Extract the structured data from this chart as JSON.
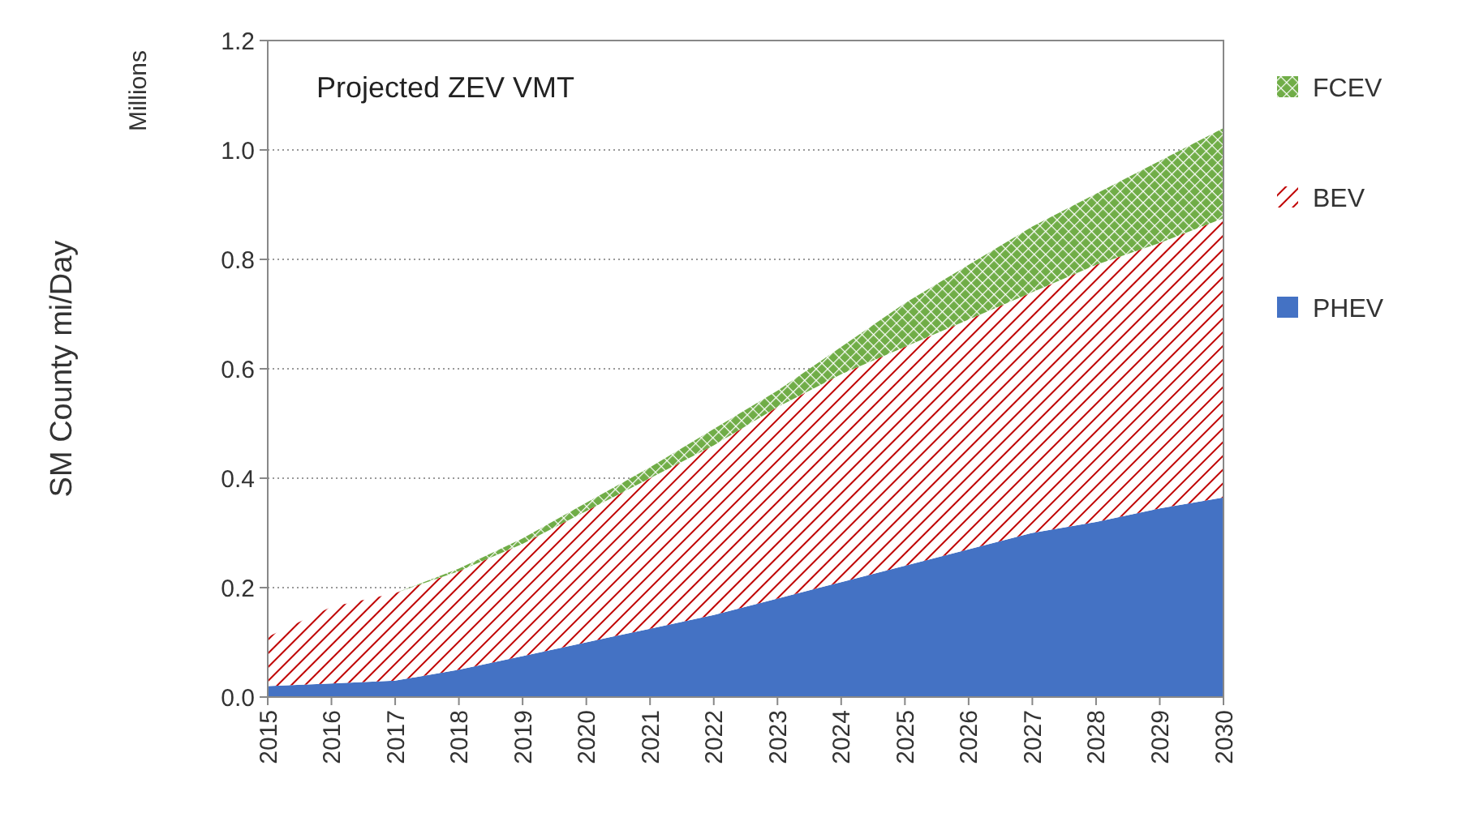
{
  "chart_data": {
    "type": "area",
    "title": "Projected ZEV VMT",
    "ylabel": "SM County mi/Day",
    "annotations": [
      "Millions"
    ],
    "x": [
      2015,
      2016,
      2017,
      2018,
      2019,
      2020,
      2021,
      2022,
      2023,
      2024,
      2025,
      2026,
      2027,
      2028,
      2029,
      2030
    ],
    "xlim": [
      2015,
      2030
    ],
    "xticks": [
      2015,
      2016,
      2017,
      2018,
      2019,
      2020,
      2021,
      2022,
      2023,
      2024,
      2025,
      2026,
      2027,
      2028,
      2029,
      2030
    ],
    "ylim": [
      0,
      1.2
    ],
    "yticks": [
      {
        "value": 0,
        "label": "0.0"
      },
      0.2,
      0.4,
      0.6,
      0.8,
      {
        "value": 1,
        "label": "1.0"
      },
      1.2
    ],
    "stacked": true,
    "grid": "y",
    "legend": "right",
    "series": [
      {
        "name": "PHEV",
        "color": "#4472c4",
        "values": [
          0.02,
          0.025,
          0.03,
          0.05,
          0.075,
          0.1,
          0.125,
          0.15,
          0.18,
          0.21,
          0.24,
          0.27,
          0.3,
          0.32,
          0.345,
          0.365
        ]
      },
      {
        "name": "BEV",
        "color": "#c00000",
        "values": [
          0.09,
          0.14,
          0.16,
          0.18,
          0.205,
          0.24,
          0.275,
          0.31,
          0.35,
          0.38,
          0.4,
          0.42,
          0.44,
          0.47,
          0.485,
          0.51
        ]
      },
      {
        "name": "FCEV",
        "color": "#70ad47",
        "values": [
          0,
          0,
          0,
          0.005,
          0.01,
          0.015,
          0.02,
          0.03,
          0.03,
          0.05,
          0.08,
          0.1,
          0.12,
          0.13,
          0.15,
          0.165
        ]
      }
    ]
  }
}
